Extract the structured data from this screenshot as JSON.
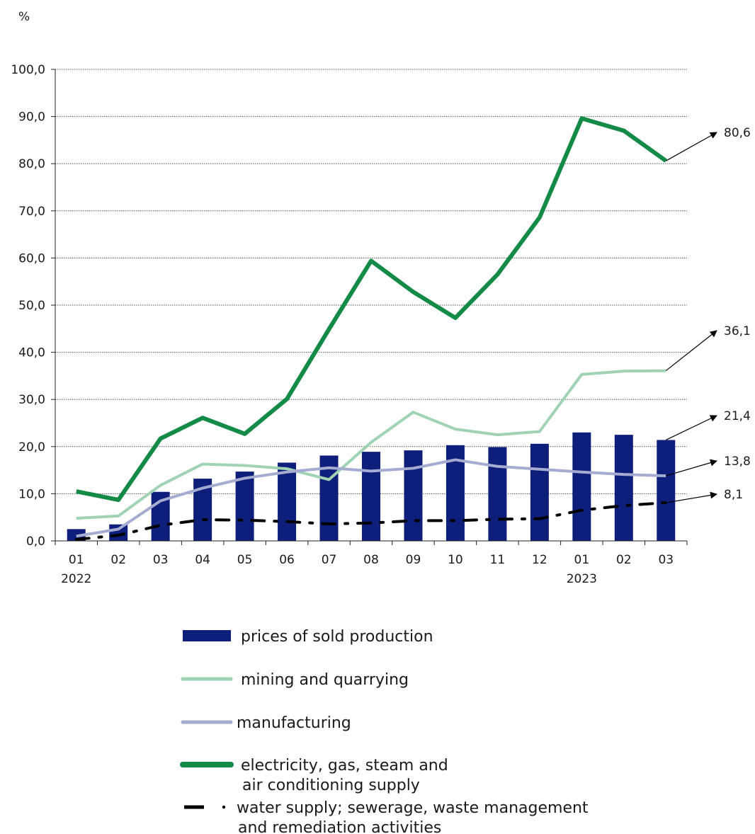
{
  "chart_data": {
    "type": "bar",
    "ylabel": "%",
    "ylim": [
      0,
      100
    ],
    "yticks": [
      "0,0",
      "10,0",
      "20,0",
      "30,0",
      "40,0",
      "50,0",
      "60,0",
      "70,0",
      "80,0",
      "90,0",
      "100,0"
    ],
    "categories": [
      "01",
      "02",
      "03",
      "04",
      "05",
      "06",
      "07",
      "08",
      "09",
      "10",
      "11",
      "12",
      "01",
      "02",
      "03"
    ],
    "year_labels": [
      {
        "index": 0,
        "label": "2022"
      },
      {
        "index": 12,
        "label": "2023"
      }
    ],
    "grid": true,
    "legend_position": "bottom",
    "series": [
      {
        "name": "prices of sold production",
        "kind": "bar",
        "color": "#0d1f7a",
        "values": [
          2.5,
          3.5,
          10.4,
          13.2,
          14.7,
          16.6,
          18.1,
          18.9,
          19.2,
          20.3,
          19.9,
          20.6,
          23.0,
          22.5,
          21.4
        ]
      },
      {
        "name": "mining and quarrying",
        "kind": "line",
        "color": "#9fd3b4",
        "values": [
          4.8,
          5.3,
          11.8,
          16.3,
          16.0,
          15.3,
          13.0,
          20.9,
          27.3,
          23.7,
          22.5,
          23.2,
          35.3,
          36.0,
          36.1
        ]
      },
      {
        "name": "manufacturing",
        "kind": "line",
        "color": "#a5abd1",
        "values": [
          1.0,
          2.5,
          8.5,
          11.2,
          13.3,
          14.6,
          15.5,
          14.8,
          15.4,
          17.2,
          15.8,
          15.2,
          14.6,
          14.1,
          13.8
        ]
      },
      {
        "name": "electricity, gas, steam and|air conditioning supply",
        "kind": "line",
        "color": "#138a45",
        "values": [
          10.5,
          8.7,
          21.7,
          26.1,
          22.7,
          30.1,
          44.9,
          59.4,
          52.8,
          47.3,
          56.5,
          68.6,
          89.6,
          87.0,
          80.6
        ]
      },
      {
        "name": "water supply; sewerage, waste management|and remediation activities",
        "kind": "line",
        "color": "#000000",
        "values": [
          0.3,
          1.2,
          3.3,
          4.5,
          4.4,
          4.1,
          3.6,
          3.8,
          4.3,
          4.3,
          4.6,
          4.7,
          6.5,
          7.5,
          8.1
        ]
      }
    ],
    "annotations": [
      {
        "series": 3,
        "label": "80,6"
      },
      {
        "series": 1,
        "label": "36,1"
      },
      {
        "series": 0,
        "label": "21,4"
      },
      {
        "series": 2,
        "label": "13,8"
      },
      {
        "series": 4,
        "label": "8,1"
      }
    ]
  }
}
